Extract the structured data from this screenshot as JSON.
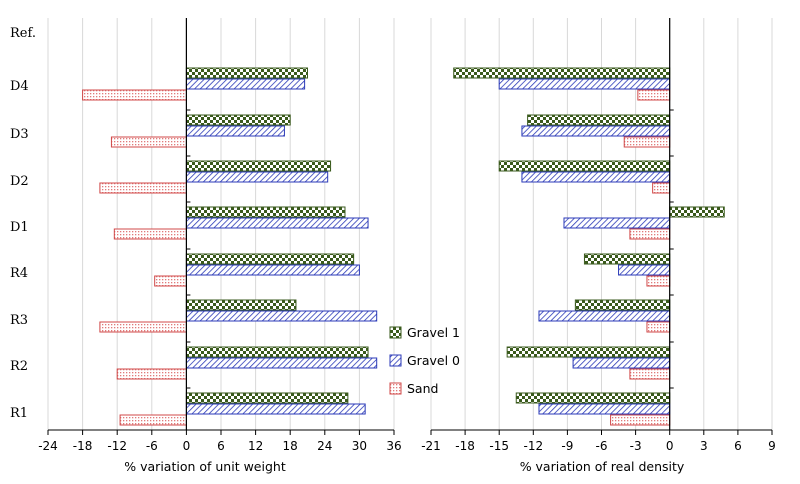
{
  "chart_data": [
    {
      "type": "bar",
      "orientation": "horizontal",
      "y_header": "Ref.",
      "categories": [
        "D4",
        "D3",
        "D2",
        "D1",
        "R4",
        "R3",
        "R2",
        "R1"
      ],
      "xlabel": "% variation  of unit weight",
      "xlim": [
        -24,
        36
      ],
      "xticks": [
        "-24",
        "-18",
        "-12",
        "-6",
        "0",
        "6",
        "12",
        "18",
        "24",
        "30",
        "36"
      ],
      "grid": "vertical",
      "series": [
        {
          "name": "Gravel 1",
          "values": [
            21,
            18,
            25,
            27.5,
            29,
            19,
            31.5,
            28
          ]
        },
        {
          "name": "Gravel 0",
          "values": [
            20.5,
            17,
            24.5,
            31.5,
            30,
            33,
            33,
            31
          ]
        },
        {
          "name": "Sand",
          "values": [
            -18,
            -13,
            -15,
            -12.5,
            -5.5,
            -15,
            -12,
            -11.5
          ]
        }
      ]
    },
    {
      "type": "bar",
      "orientation": "horizontal",
      "categories": [
        "D4",
        "D3",
        "D2",
        "D1",
        "R4",
        "R3",
        "R2",
        "R1"
      ],
      "xlabel": "% variation  of real density",
      "xlim": [
        -21,
        9
      ],
      "xticks": [
        "-21",
        "-18",
        "-15",
        "-12",
        "-9",
        "-6",
        "-3",
        "0",
        "3",
        "6",
        "9"
      ],
      "grid": "vertical",
      "series": [
        {
          "name": "Gravel 1",
          "values": [
            -19,
            -12.5,
            -15,
            4.8,
            -7.5,
            -8.3,
            -14.3,
            -13.5
          ]
        },
        {
          "name": "Gravel 0",
          "values": [
            -15,
            -13,
            -13,
            -9.3,
            -4.5,
            -11.5,
            -8.5,
            -11.5
          ]
        },
        {
          "name": "Sand",
          "values": [
            -2.8,
            -4,
            -1.5,
            -3.5,
            -2,
            -2,
            -3.5,
            -5.2
          ]
        }
      ]
    }
  ],
  "legend": {
    "position": "center",
    "items": [
      "Gravel 1",
      "Gravel 0",
      "Sand"
    ]
  }
}
